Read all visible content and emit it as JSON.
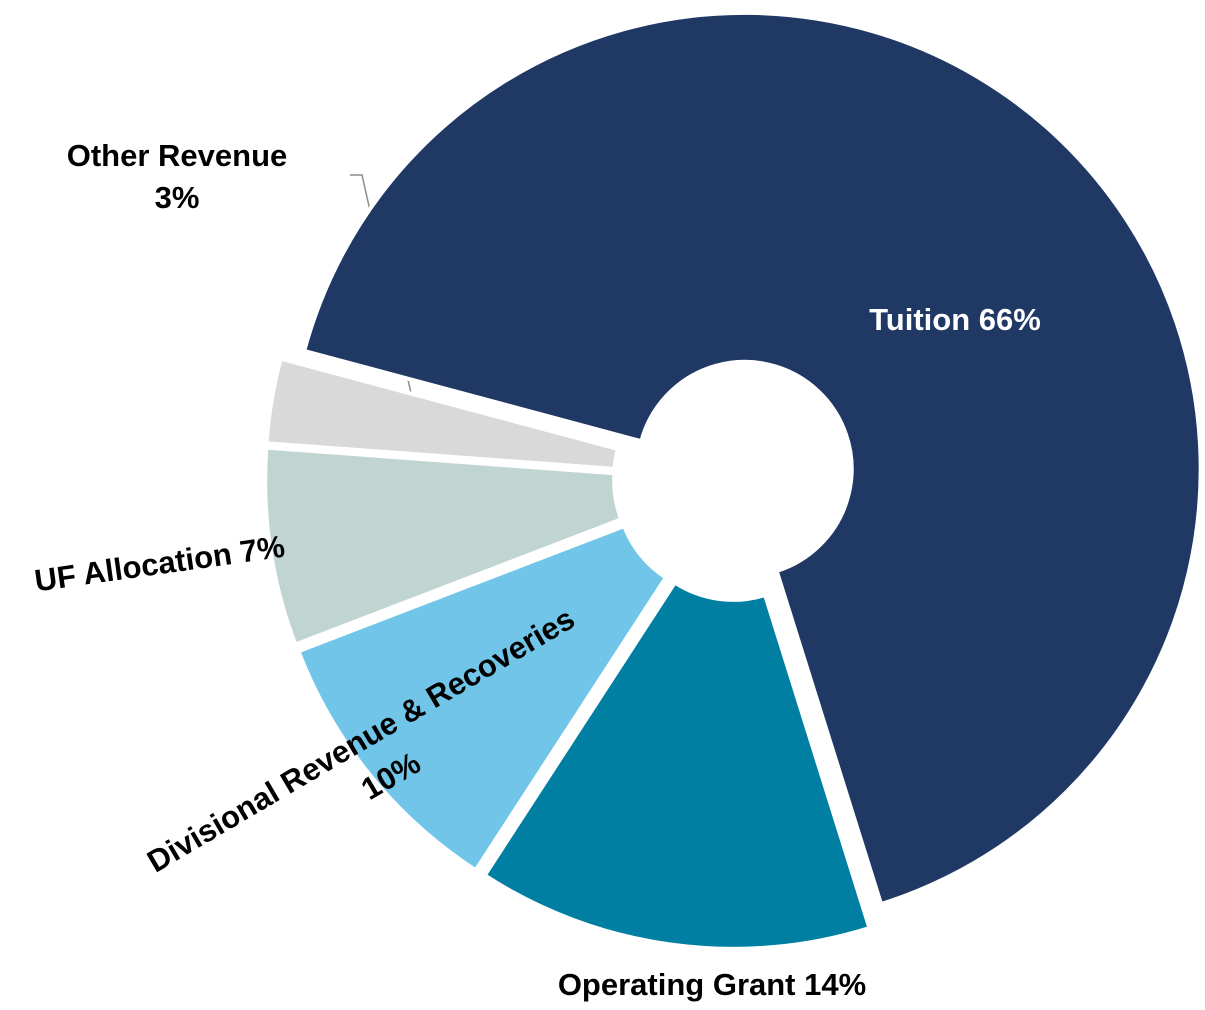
{
  "chart_data": {
    "type": "donut",
    "categories": [
      "Tuition",
      "Operating Grant",
      "Divisional Revenue & Recoveries",
      "UF Allocation",
      "Other Revenue"
    ],
    "values": [
      66,
      14,
      10,
      7,
      3
    ],
    "value_labels": [
      "66%",
      "14%",
      "10%",
      "7%",
      "3%"
    ],
    "colors": [
      "#203864",
      "#017fa3",
      "#70c5e8",
      "#c0d4d2",
      "#d9d9d9"
    ]
  }
}
